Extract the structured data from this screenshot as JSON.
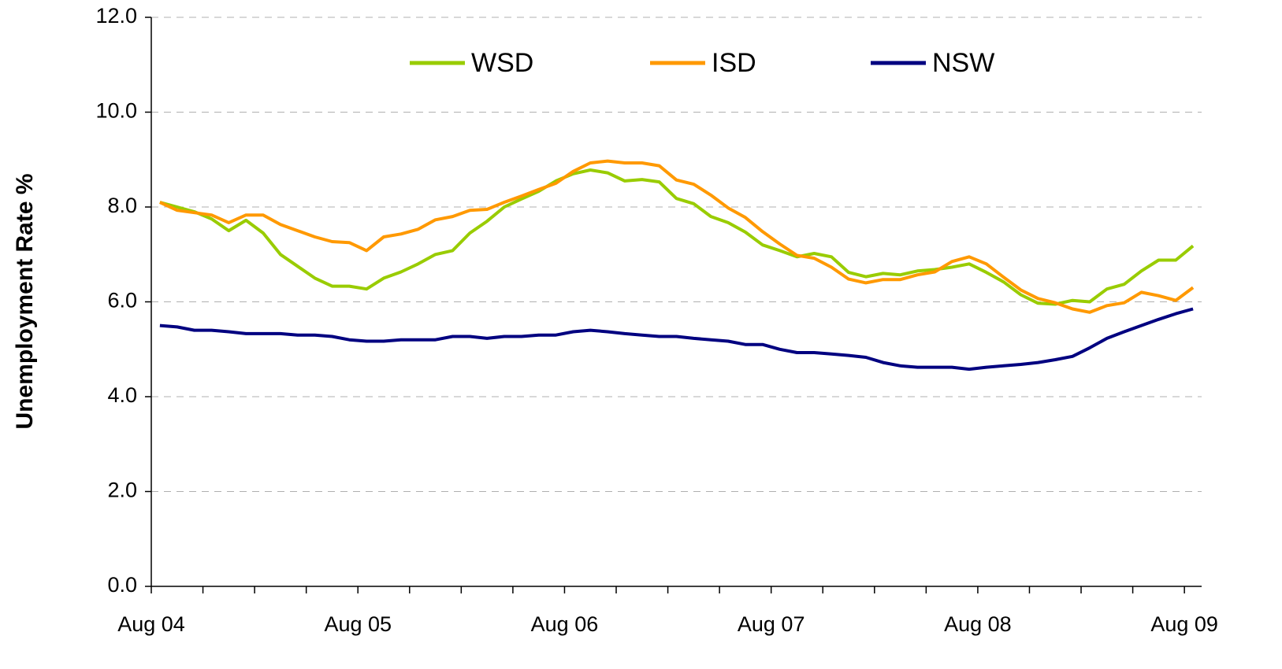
{
  "chart_data": {
    "type": "line",
    "y_label": "Unemployment Rate %",
    "categories": [
      "Aug 04",
      null,
      null,
      null,
      null,
      null,
      null,
      null,
      null,
      null,
      null,
      null,
      "Aug 05",
      null,
      null,
      null,
      null,
      null,
      null,
      null,
      null,
      null,
      null,
      null,
      "Aug 06",
      null,
      null,
      null,
      null,
      null,
      null,
      null,
      null,
      null,
      null,
      null,
      "Aug 07",
      null,
      null,
      null,
      null,
      null,
      null,
      null,
      null,
      null,
      null,
      null,
      "Aug 08",
      null,
      null,
      null,
      null,
      null,
      null,
      null,
      null,
      null,
      null,
      null,
      "Aug 09"
    ],
    "series": [
      {
        "name": "WSD",
        "color": "#99cc00",
        "values": [
          8.1,
          8.0,
          7.9,
          7.75,
          7.5,
          7.72,
          7.45,
          7.0,
          6.75,
          6.5,
          6.33,
          6.33,
          6.27,
          6.5,
          6.63,
          6.8,
          7.0,
          7.08,
          7.45,
          7.7,
          8.0,
          8.17,
          8.33,
          8.55,
          8.7,
          8.78,
          8.72,
          8.55,
          8.58,
          8.53,
          8.18,
          8.07,
          7.8,
          7.67,
          7.47,
          7.2,
          7.08,
          6.95,
          7.02,
          6.95,
          6.62,
          6.53,
          6.6,
          6.57,
          6.65,
          6.68,
          6.73,
          6.8,
          6.62,
          6.42,
          6.15,
          5.97,
          5.95,
          6.03,
          6.0,
          6.27,
          6.37,
          6.65,
          6.88,
          6.88,
          7.18
        ]
      },
      {
        "name": "ISD",
        "color": "#ff9900",
        "values": [
          8.1,
          7.93,
          7.88,
          7.83,
          7.67,
          7.83,
          7.83,
          7.63,
          7.5,
          7.37,
          7.27,
          7.25,
          7.08,
          7.37,
          7.43,
          7.53,
          7.73,
          7.8,
          7.93,
          7.95,
          8.1,
          8.23,
          8.37,
          8.5,
          8.75,
          8.93,
          8.97,
          8.93,
          8.93,
          8.87,
          8.57,
          8.48,
          8.25,
          7.98,
          7.78,
          7.48,
          7.22,
          6.98,
          6.92,
          6.73,
          6.48,
          6.4,
          6.47,
          6.47,
          6.57,
          6.63,
          6.85,
          6.95,
          6.8,
          6.52,
          6.25,
          6.07,
          5.98,
          5.85,
          5.78,
          5.92,
          5.98,
          6.2,
          6.13,
          6.03,
          6.3
        ]
      },
      {
        "name": "NSW",
        "color": "#000080",
        "values": [
          5.5,
          5.47,
          5.4,
          5.4,
          5.37,
          5.33,
          5.33,
          5.33,
          5.3,
          5.3,
          5.27,
          5.2,
          5.17,
          5.17,
          5.2,
          5.2,
          5.2,
          5.27,
          5.27,
          5.23,
          5.27,
          5.27,
          5.3,
          5.3,
          5.37,
          5.4,
          5.37,
          5.33,
          5.3,
          5.27,
          5.27,
          5.23,
          5.2,
          5.17,
          5.1,
          5.1,
          5.0,
          4.93,
          4.93,
          4.9,
          4.87,
          4.83,
          4.72,
          4.65,
          4.62,
          4.62,
          4.62,
          4.58,
          4.62,
          4.65,
          4.68,
          4.72,
          4.78,
          4.85,
          5.03,
          5.23,
          5.37,
          5.5,
          5.63,
          5.75,
          5.85
        ]
      }
    ],
    "ylim": [
      0,
      12
    ],
    "yticks": [
      {
        "value": 0,
        "label": "0.0"
      },
      {
        "value": 2,
        "label": "2.0"
      },
      {
        "value": 4,
        "label": "4.0"
      },
      {
        "value": 6,
        "label": "6.0"
      },
      {
        "value": 8,
        "label": "8.0"
      },
      {
        "value": 10,
        "label": "10.0"
      },
      {
        "value": 12,
        "label": "12.0"
      }
    ],
    "grid": true,
    "legend": "top"
  }
}
